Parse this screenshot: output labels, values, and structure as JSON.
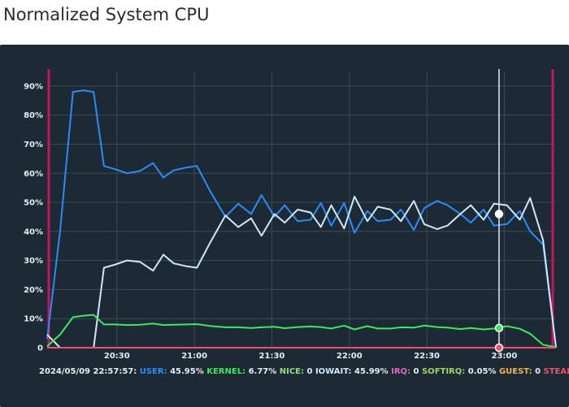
{
  "page": {
    "title": "Normalized System CPU"
  },
  "colors": {
    "background": "#1d2a36",
    "grid": "#3a4a58",
    "axis_text": "#e6ebf0",
    "user": "#2b8cf5",
    "kernel": "#3ee85a",
    "nice": "#8fe07a",
    "iowait": "#cfe6fb",
    "irq": "#e06ab8",
    "softirq": "#a4d36a",
    "guest": "#f0b24a",
    "steal": "#e8536c",
    "boundary": "#c2185b",
    "cursor": "#e6ebf0"
  },
  "chart_data": {
    "type": "line",
    "title": "Normalized System CPU",
    "xlabel": "",
    "ylabel": "",
    "ylim": [
      0,
      95
    ],
    "y_ticks": [
      "0",
      "10%",
      "20%",
      "30%",
      "40%",
      "50%",
      "60%",
      "70%",
      "80%",
      "90%"
    ],
    "x_ticks": [
      "20:30",
      "21:00",
      "21:30",
      "22:00",
      "22:30",
      "23:00",
      "23:30"
    ],
    "x_range_minutes_from_20_30": [
      -27,
      38
    ],
    "grid": true,
    "cursor": {
      "timestamp": "2024/05/09 22:57:57:",
      "x_minutes": 147.95
    },
    "legend": [
      {
        "key": "user",
        "label": "USER:",
        "value": "45.95%",
        "color": "#2b8cf5"
      },
      {
        "key": "kernel",
        "label": "KERNEL:",
        "value": "6.77%",
        "color": "#3ee85a"
      },
      {
        "key": "nice",
        "label": "NICE:",
        "value": "0",
        "color": "#8fe07a"
      },
      {
        "key": "iowait",
        "label": "IOWAIT:",
        "value": "45.99%",
        "color": "#cfe6fb"
      },
      {
        "key": "irq",
        "label": "IRQ:",
        "value": "0",
        "color": "#e06ab8"
      },
      {
        "key": "softirq",
        "label": "SOFTIRQ:",
        "value": "0.05%",
        "color": "#a4d36a"
      },
      {
        "key": "guest",
        "label": "GUEST:",
        "value": "0",
        "color": "#f0b24a"
      },
      {
        "key": "steal",
        "label": "STEAL:",
        "value": "0",
        "color": "#e8536c"
      }
    ],
    "series": [
      {
        "key": "user",
        "color": "#2b8cf5",
        "points": [
          [
            -27,
            3
          ],
          [
            -22,
            40
          ],
          [
            -17,
            88
          ],
          [
            -13,
            88.5
          ],
          [
            -9,
            88
          ],
          [
            -5,
            62.5
          ],
          [
            -1,
            61.5
          ],
          [
            4,
            60
          ],
          [
            9,
            60.8
          ],
          [
            14,
            63.5
          ],
          [
            18,
            58.5
          ],
          [
            22,
            61
          ],
          [
            27,
            62
          ],
          [
            31,
            62.5
          ],
          [
            36,
            54
          ],
          [
            42,
            45
          ],
          [
            47,
            49.5
          ],
          [
            52,
            46
          ],
          [
            56,
            52.5
          ],
          [
            61,
            45
          ],
          [
            65,
            49
          ],
          [
            70,
            43.5
          ],
          [
            75,
            44
          ],
          [
            79,
            49.8
          ],
          [
            83,
            42
          ],
          [
            88,
            49.8
          ],
          [
            92,
            39.5
          ],
          [
            97,
            47
          ],
          [
            101,
            43.5
          ],
          [
            106,
            44
          ],
          [
            110,
            47.5
          ],
          [
            115,
            40.5
          ],
          [
            119,
            48
          ],
          [
            124,
            50.5
          ],
          [
            128,
            49
          ],
          [
            133,
            46
          ],
          [
            137,
            43
          ],
          [
            142,
            47.5
          ],
          [
            146,
            42
          ],
          [
            151,
            42.5
          ],
          [
            156,
            47
          ],
          [
            160,
            40
          ],
          [
            165,
            35.5
          ],
          [
            170,
            0
          ]
        ]
      },
      {
        "key": "iowait",
        "color": "#cfe6fb",
        "points": [
          [
            -27,
            4.5
          ],
          [
            -22,
            0
          ],
          [
            -9,
            0
          ],
          [
            -5,
            27.5
          ],
          [
            -1,
            28.5
          ],
          [
            4,
            30
          ],
          [
            9,
            29.5
          ],
          [
            14,
            26.5
          ],
          [
            18,
            32
          ],
          [
            22,
            29
          ],
          [
            27,
            28
          ],
          [
            31,
            27.5
          ],
          [
            36,
            36
          ],
          [
            42,
            45.5
          ],
          [
            47,
            41.5
          ],
          [
            52,
            44.5
          ],
          [
            56,
            38.5
          ],
          [
            61,
            46
          ],
          [
            65,
            43
          ],
          [
            70,
            47.5
          ],
          [
            75,
            46.5
          ],
          [
            79,
            41.5
          ],
          [
            83,
            49
          ],
          [
            88,
            41
          ],
          [
            92,
            52
          ],
          [
            97,
            43.5
          ],
          [
            101,
            48.5
          ],
          [
            106,
            47.5
          ],
          [
            110,
            43.5
          ],
          [
            115,
            50.5
          ],
          [
            119,
            42.5
          ],
          [
            124,
            40.8
          ],
          [
            128,
            42
          ],
          [
            133,
            46
          ],
          [
            137,
            49
          ],
          [
            142,
            44
          ],
          [
            146,
            49.5
          ],
          [
            151,
            49
          ],
          [
            156,
            44
          ],
          [
            160,
            51.5
          ],
          [
            165,
            37
          ],
          [
            170,
            0
          ]
        ]
      },
      {
        "key": "kernel",
        "color": "#3ee85a",
        "points": [
          [
            -27,
            0.5
          ],
          [
            -22,
            4.5
          ],
          [
            -17,
            10.5
          ],
          [
            -13,
            11
          ],
          [
            -9,
            11.3
          ],
          [
            -5,
            8
          ],
          [
            -1,
            8
          ],
          [
            4,
            7.8
          ],
          [
            9,
            7.9
          ],
          [
            14,
            8.3
          ],
          [
            18,
            7.8
          ],
          [
            22,
            7.9
          ],
          [
            27,
            8
          ],
          [
            31,
            8.1
          ],
          [
            36,
            7.5
          ],
          [
            42,
            7
          ],
          [
            47,
            7
          ],
          [
            52,
            6.8
          ],
          [
            56,
            7
          ],
          [
            61,
            7.2
          ],
          [
            65,
            6.7
          ],
          [
            70,
            7.1
          ],
          [
            75,
            7.3
          ],
          [
            79,
            7.1
          ],
          [
            83,
            6.6
          ],
          [
            88,
            7.6
          ],
          [
            92,
            6.3
          ],
          [
            97,
            7.4
          ],
          [
            101,
            6.6
          ],
          [
            106,
            6.6
          ],
          [
            110,
            7
          ],
          [
            115,
            6.9
          ],
          [
            119,
            7.6
          ],
          [
            124,
            7.1
          ],
          [
            128,
            6.9
          ],
          [
            133,
            6.4
          ],
          [
            137,
            6.8
          ],
          [
            142,
            6.3
          ],
          [
            146,
            6.6
          ],
          [
            151,
            7.4
          ],
          [
            156,
            6.5
          ],
          [
            160,
            4.8
          ],
          [
            165,
            1
          ],
          [
            170,
            0.2
          ]
        ]
      },
      {
        "key": "steal",
        "color": "#e8536c",
        "points": [
          [
            -27,
            0
          ],
          [
            170,
            0
          ]
        ]
      }
    ]
  }
}
